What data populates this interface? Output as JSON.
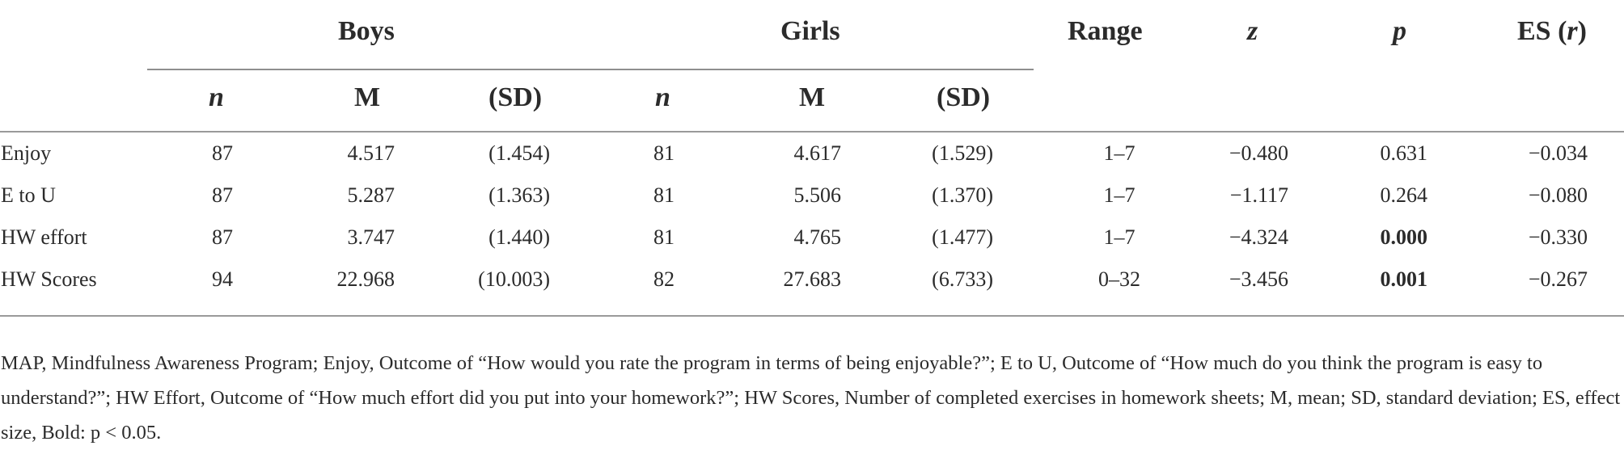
{
  "table": {
    "group_headers": {
      "boys": "Boys",
      "girls": "Girls",
      "range": "Range",
      "z": "z",
      "p": "p",
      "es_prefix": "ES (",
      "es_var": "r",
      "es_suffix": ")"
    },
    "sub_headers": {
      "n": "n",
      "m": "M",
      "sd": "(SD)"
    },
    "rows": [
      {
        "label": "Enjoy",
        "boys_n": "87",
        "boys_m": "4.517",
        "boys_sd": "(1.454)",
        "girls_n": "81",
        "girls_m": "4.617",
        "girls_sd": "(1.529)",
        "range": "1–7",
        "z": "−0.480",
        "p": "0.631",
        "p_bold": false,
        "es": "−0.034"
      },
      {
        "label": "E to U",
        "boys_n": "87",
        "boys_m": "5.287",
        "boys_sd": "(1.363)",
        "girls_n": "81",
        "girls_m": "5.506",
        "girls_sd": "(1.370)",
        "range": "1–7",
        "z": "−1.117",
        "p": "0.264",
        "p_bold": false,
        "es": "−0.080"
      },
      {
        "label": "HW effort",
        "boys_n": "87",
        "boys_m": "3.747",
        "boys_sd": "(1.440)",
        "girls_n": "81",
        "girls_m": "4.765",
        "girls_sd": "(1.477)",
        "range": "1–7",
        "z": "−4.324",
        "p": "0.000",
        "p_bold": true,
        "es": "−0.330"
      },
      {
        "label": "HW Scores",
        "boys_n": "94",
        "boys_m": "22.968",
        "boys_sd": "(10.003)",
        "girls_n": "82",
        "girls_m": "27.683",
        "girls_sd": "(6.733)",
        "range": "0–32",
        "z": "−3.456",
        "p": "0.001",
        "p_bold": true,
        "es": "−0.267"
      }
    ]
  },
  "footnote": "MAP, Mindfulness Awareness Program; Enjoy, Outcome of “How would you rate the program in terms of being enjoyable?”; E to U, Outcome of “How much do you think the program is easy to understand?”; HW Effort, Outcome of “How much effort did you put into your homework?”; HW Scores, Number of completed exercises in homework sheets; M, mean; SD, standard deviation; ES, effect size, Bold: p < 0.05."
}
